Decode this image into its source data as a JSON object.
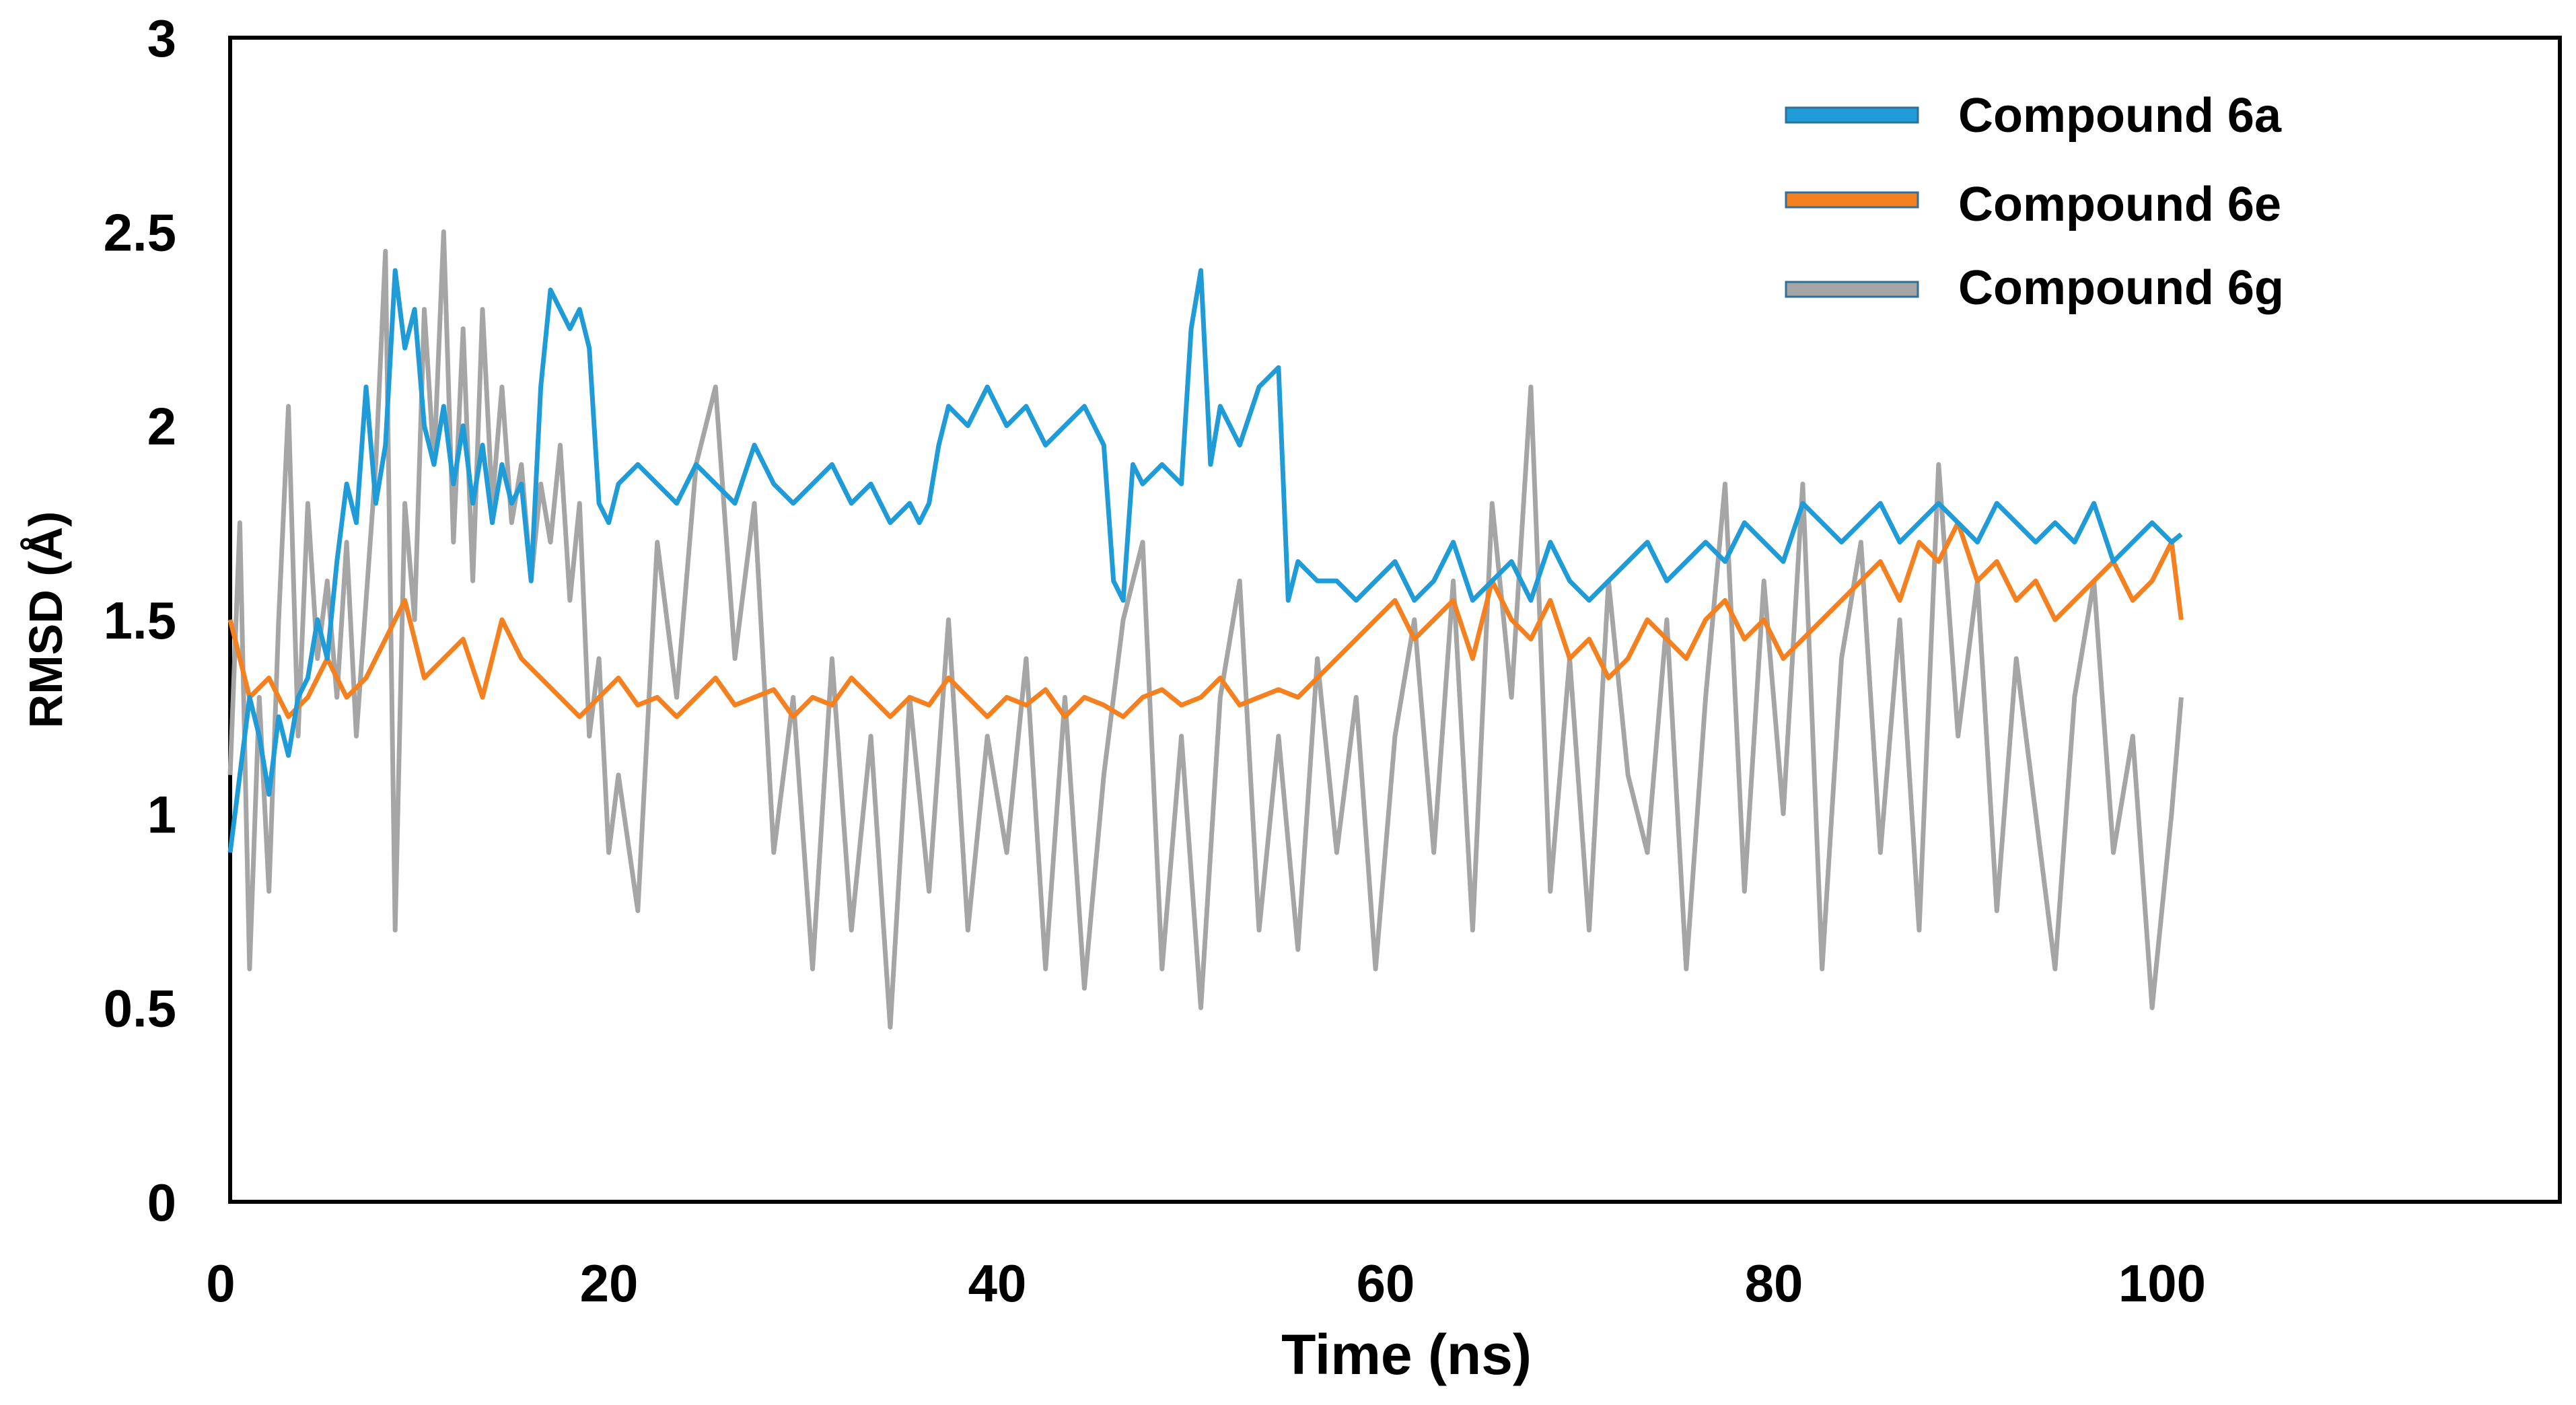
{
  "chart_data": {
    "type": "line",
    "title": "",
    "xlabel": "Time (ns)",
    "ylabel": "RMSD (Å)",
    "xlim": [
      0,
      120
    ],
    "ylim": [
      0,
      3
    ],
    "x_ticks": [
      0,
      20,
      40,
      60,
      80,
      100
    ],
    "x_tick_labels": [
      "0",
      "20",
      "40",
      "60",
      "80",
      "100"
    ],
    "y_ticks": [
      0,
      0.5,
      1,
      1.5,
      2,
      2.5,
      3
    ],
    "y_tick_labels": [
      "0",
      "0.5",
      "1",
      "1.5",
      "2",
      "2.5",
      "3"
    ],
    "grid": false,
    "legend_position": "top-right",
    "series": [
      {
        "name": "Compound 6a",
        "color": "#1f9bd7",
        "x": [
          0,
          0.5,
          1,
          1.5,
          2,
          2.5,
          3,
          3.5,
          4,
          4.5,
          5,
          5.5,
          6,
          6.5,
          7,
          7.5,
          8,
          8.5,
          9,
          9.5,
          10,
          10.5,
          11,
          11.5,
          12,
          12.5,
          13,
          13.5,
          14,
          14.5,
          15,
          15.5,
          16,
          16.5,
          17,
          17.5,
          18,
          18.5,
          19,
          19.5,
          20,
          21,
          22,
          23,
          24,
          25,
          26,
          27,
          28,
          29,
          30,
          31,
          32,
          33,
          34,
          35,
          35.5,
          36,
          36.5,
          37,
          38,
          39,
          40,
          41,
          42,
          43,
          44,
          45,
          45.5,
          46,
          46.5,
          47,
          48,
          49,
          49.5,
          50,
          50.5,
          51,
          52,
          53,
          54,
          54.5,
          55,
          56,
          57,
          58,
          59,
          60,
          61,
          62,
          63,
          64,
          65,
          66,
          67,
          68,
          69,
          70,
          71,
          72,
          73,
          74,
          75,
          76,
          77,
          78,
          79,
          80,
          81,
          82,
          83,
          84,
          85,
          86,
          87,
          88,
          89,
          90,
          91,
          92,
          93,
          94,
          95,
          96,
          97,
          98,
          99,
          100,
          100.5
        ],
        "values": [
          0.9,
          1.1,
          1.3,
          1.2,
          1.05,
          1.25,
          1.15,
          1.3,
          1.35,
          1.5,
          1.4,
          1.65,
          1.85,
          1.75,
          2.1,
          1.8,
          1.95,
          2.4,
          2.2,
          2.3,
          2.0,
          1.9,
          2.05,
          1.85,
          2.0,
          1.8,
          1.95,
          1.75,
          1.9,
          1.8,
          1.85,
          1.6,
          2.1,
          2.35,
          2.3,
          2.25,
          2.3,
          2.2,
          1.8,
          1.75,
          1.85,
          1.9,
          1.85,
          1.8,
          1.9,
          1.85,
          1.8,
          1.95,
          1.85,
          1.8,
          1.85,
          1.9,
          1.8,
          1.85,
          1.75,
          1.8,
          1.75,
          1.8,
          1.95,
          2.05,
          2.0,
          2.1,
          2.0,
          2.05,
          1.95,
          2.0,
          2.05,
          1.95,
          1.6,
          1.55,
          1.9,
          1.85,
          1.9,
          1.85,
          2.25,
          2.4,
          1.9,
          2.05,
          1.95,
          2.1,
          2.15,
          1.55,
          1.65,
          1.6,
          1.6,
          1.55,
          1.6,
          1.65,
          1.55,
          1.6,
          1.7,
          1.55,
          1.6,
          1.65,
          1.55,
          1.7,
          1.6,
          1.55,
          1.6,
          1.65,
          1.7,
          1.6,
          1.65,
          1.7,
          1.65,
          1.75,
          1.7,
          1.65,
          1.8,
          1.75,
          1.7,
          1.75,
          1.8,
          1.7,
          1.75,
          1.8,
          1.75,
          1.7,
          1.8,
          1.75,
          1.7,
          1.75,
          1.7,
          1.8,
          1.65,
          1.7,
          1.75,
          1.7,
          1.72
        ]
      },
      {
        "name": "Compound 6e",
        "color": "#f5801f",
        "x": [
          0,
          1,
          2,
          3,
          4,
          5,
          6,
          7,
          8,
          9,
          10,
          11,
          12,
          13,
          14,
          15,
          16,
          17,
          18,
          19,
          20,
          21,
          22,
          23,
          24,
          25,
          26,
          27,
          28,
          29,
          30,
          31,
          32,
          33,
          34,
          35,
          36,
          37,
          38,
          39,
          40,
          41,
          42,
          43,
          44,
          45,
          46,
          47,
          48,
          49,
          50,
          51,
          52,
          53,
          54,
          55,
          56,
          57,
          58,
          59,
          60,
          61,
          62,
          63,
          64,
          65,
          66,
          67,
          68,
          69,
          70,
          71,
          72,
          73,
          74,
          75,
          76,
          77,
          78,
          79,
          80,
          81,
          82,
          83,
          84,
          85,
          86,
          87,
          88,
          89,
          90,
          91,
          92,
          93,
          94,
          95,
          96,
          97,
          98,
          99,
          100,
          100.5
        ],
        "values": [
          1.5,
          1.3,
          1.35,
          1.25,
          1.3,
          1.4,
          1.3,
          1.35,
          1.45,
          1.55,
          1.35,
          1.4,
          1.45,
          1.3,
          1.5,
          1.4,
          1.35,
          1.3,
          1.25,
          1.3,
          1.35,
          1.28,
          1.3,
          1.25,
          1.3,
          1.35,
          1.28,
          1.3,
          1.32,
          1.25,
          1.3,
          1.28,
          1.35,
          1.3,
          1.25,
          1.3,
          1.28,
          1.35,
          1.3,
          1.25,
          1.3,
          1.28,
          1.32,
          1.25,
          1.3,
          1.28,
          1.25,
          1.3,
          1.32,
          1.28,
          1.3,
          1.35,
          1.28,
          1.3,
          1.32,
          1.3,
          1.35,
          1.4,
          1.45,
          1.5,
          1.55,
          1.45,
          1.5,
          1.55,
          1.4,
          1.6,
          1.5,
          1.45,
          1.55,
          1.4,
          1.45,
          1.35,
          1.4,
          1.5,
          1.45,
          1.4,
          1.5,
          1.55,
          1.45,
          1.5,
          1.4,
          1.45,
          1.5,
          1.55,
          1.6,
          1.65,
          1.55,
          1.7,
          1.65,
          1.75,
          1.6,
          1.65,
          1.55,
          1.6,
          1.5,
          1.55,
          1.6,
          1.65,
          1.55,
          1.6,
          1.7,
          1.5
        ]
      },
      {
        "name": "Compound 6g",
        "color": "#a5a5a5",
        "x": [
          0,
          0.5,
          1,
          1.5,
          2,
          2.5,
          3,
          3.5,
          4,
          4.5,
          5,
          5.5,
          6,
          6.5,
          7,
          7.5,
          8,
          8.5,
          9,
          9.5,
          10,
          10.5,
          11,
          11.5,
          12,
          12.5,
          13,
          13.5,
          14,
          14.5,
          15,
          15.5,
          16,
          16.5,
          17,
          17.5,
          18,
          18.5,
          19,
          19.5,
          20,
          21,
          22,
          23,
          24,
          25,
          26,
          27,
          28,
          29,
          30,
          31,
          32,
          33,
          34,
          35,
          36,
          37,
          38,
          39,
          40,
          41,
          42,
          43,
          44,
          45,
          46,
          47,
          48,
          49,
          50,
          51,
          52,
          53,
          54,
          55,
          56,
          57,
          58,
          59,
          60,
          61,
          62,
          63,
          64,
          65,
          66,
          67,
          68,
          69,
          70,
          71,
          72,
          73,
          74,
          75,
          76,
          77,
          78,
          79,
          80,
          81,
          82,
          83,
          84,
          85,
          86,
          87,
          88,
          89,
          90,
          91,
          92,
          93,
          94,
          95,
          96,
          97,
          98,
          99,
          100,
          100.5
        ],
        "values": [
          1.1,
          1.75,
          0.6,
          1.3,
          0.8,
          1.5,
          2.05,
          1.2,
          1.8,
          1.4,
          1.6,
          1.3,
          1.7,
          1.2,
          1.55,
          1.9,
          2.45,
          0.7,
          1.8,
          1.5,
          2.3,
          1.9,
          2.5,
          1.7,
          2.25,
          1.6,
          2.3,
          1.8,
          2.1,
          1.75,
          1.9,
          1.6,
          1.85,
          1.7,
          1.95,
          1.55,
          1.8,
          1.2,
          1.4,
          0.9,
          1.1,
          0.75,
          1.7,
          1.3,
          1.9,
          2.1,
          1.4,
          1.8,
          0.9,
          1.3,
          0.6,
          1.4,
          0.7,
          1.2,
          0.45,
          1.3,
          0.8,
          1.5,
          0.7,
          1.2,
          0.9,
          1.4,
          0.6,
          1.3,
          0.55,
          1.1,
          1.5,
          1.7,
          0.6,
          1.2,
          0.5,
          1.3,
          1.6,
          0.7,
          1.2,
          0.65,
          1.4,
          0.9,
          1.3,
          0.6,
          1.2,
          1.5,
          0.9,
          1.6,
          0.7,
          1.8,
          1.3,
          2.1,
          0.8,
          1.4,
          0.7,
          1.6,
          1.1,
          0.9,
          1.5,
          0.6,
          1.3,
          1.85,
          0.8,
          1.6,
          1.0,
          1.85,
          0.6,
          1.4,
          1.7,
          0.9,
          1.5,
          0.7,
          1.9,
          1.2,
          1.6,
          0.75,
          1.4,
          1.0,
          0.6,
          1.3,
          1.6,
          0.9,
          1.2,
          0.5,
          1.0,
          1.3
        ]
      }
    ]
  }
}
